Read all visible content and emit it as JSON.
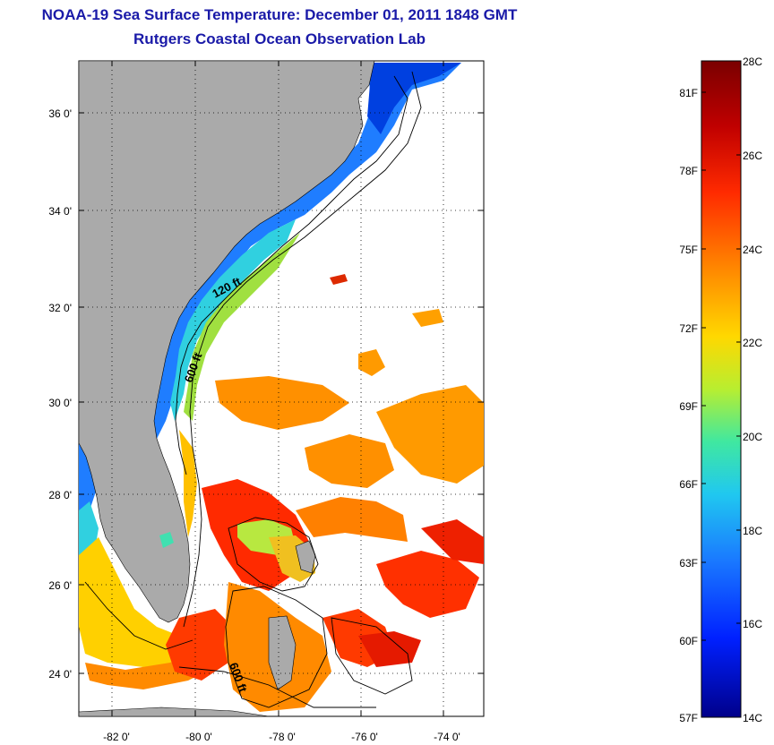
{
  "header": {
    "title": "NOAA-19 Sea Surface Temperature:  December 01, 2011 1848 GMT",
    "subtitle": "Rutgers Coastal Ocean Observation Lab"
  },
  "map": {
    "lat_ticks": [
      "36 0'",
      "34 0'",
      "32 0'",
      "30 0'",
      "28 0'",
      "26 0'",
      "24 0'"
    ],
    "lon_ticks": [
      "-82 0'",
      "-80 0'",
      "-78 0'",
      "-76 0'",
      "-74 0'"
    ],
    "contour_labels": [
      "120 ft",
      "600 ft",
      "600 ft"
    ],
    "land_color": "#aaaaaa",
    "ocean_nodata_color": "#ffffff"
  },
  "colorbar": {
    "celsius_labels": [
      "28C",
      "26C",
      "24C",
      "22C",
      "20C",
      "18C",
      "16C",
      "14C"
    ],
    "fahrenheit_labels": [
      "81F",
      "78F",
      "75F",
      "72F",
      "69F",
      "66F",
      "63F",
      "60F",
      "57F"
    ],
    "colors": [
      "#7a0000",
      "#d40000",
      "#ff4a00",
      "#ff9a00",
      "#ffe000",
      "#9fe83c",
      "#2fe0c0",
      "#1aa0ff",
      "#0040ff",
      "#0000a0"
    ]
  }
}
